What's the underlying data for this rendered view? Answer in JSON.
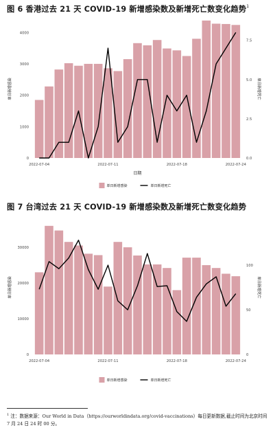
{
  "figures": [
    {
      "title": "图 6 香港过去 21 天 COVID-19 新增感染数及新增死亡数变化趋势",
      "title_sup": "1",
      "chart_data": {
        "type": "bar",
        "x": [
          "2022-07-04",
          "2022-07-05",
          "2022-07-06",
          "2022-07-07",
          "2022-07-08",
          "2022-07-09",
          "2022-07-10",
          "2022-07-11",
          "2022-07-12",
          "2022-07-13",
          "2022-07-14",
          "2022-07-15",
          "2022-07-16",
          "2022-07-17",
          "2022-07-18",
          "2022-07-19",
          "2022-07-20",
          "2022-07-21",
          "2022-07-22",
          "2022-07-23",
          "2022-07-24"
        ],
        "series": [
          {
            "name": "单日新增感染",
            "type": "bar",
            "axis": "left",
            "color": "#d9a1a8",
            "values": [
              1850,
              2280,
              2820,
              3020,
              2940,
              3000,
              3000,
              2860,
              2770,
              3150,
              3660,
              3590,
              3760,
              3490,
              3430,
              3250,
              3800,
              4380,
              4280,
              4270,
              4240
            ]
          },
          {
            "name": "单日新增死亡",
            "type": "line",
            "axis": "right",
            "color": "#000000",
            "values": [
              0,
              0,
              1,
              1,
              3,
              0,
              2,
              7,
              1,
              2,
              5,
              5,
              1,
              4,
              3,
              4,
              1,
              3,
              6,
              7,
              8
            ]
          }
        ],
        "xticks": [
          "2022-07-04",
          "2022-07-11",
          "2022-07-18",
          "2022-07-24"
        ],
        "xlabel": "日期",
        "ylabel": "单日新增感染",
        "y2label": "单日新增死亡",
        "ylim": [
          0,
          4400
        ],
        "yticks": [
          0,
          1000,
          2000,
          3000,
          4000
        ],
        "ytick_labels": [
          "0",
          "1000",
          "2000",
          "3000",
          "4000"
        ],
        "y2lim": [
          0,
          8.8
        ],
        "y2ticks": [
          0,
          2.5,
          5,
          7.5
        ],
        "y2tick_labels": [
          "0.0",
          "2.5",
          "5.0",
          "7.5"
        ],
        "legend": [
          "单日新增感染",
          "单日新增死亡"
        ],
        "legend_position": "bottom",
        "grid": false
      }
    },
    {
      "title": "图 7 台湾过去 21 天 COVID-19 新增感染数及新增死亡数变化趋势",
      "title_sup": "",
      "chart_data": {
        "type": "bar",
        "x": [
          "2022-07-04",
          "2022-07-05",
          "2022-07-06",
          "2022-07-07",
          "2022-07-08",
          "2022-07-09",
          "2022-07-10",
          "2022-07-11",
          "2022-07-12",
          "2022-07-13",
          "2022-07-14",
          "2022-07-15",
          "2022-07-16",
          "2022-07-17",
          "2022-07-18",
          "2022-07-19",
          "2022-07-20",
          "2022-07-21",
          "2022-07-22",
          "2022-07-23",
          "2022-07-24"
        ],
        "series": [
          {
            "name": "单日新增感染",
            "type": "bar",
            "axis": "left",
            "color": "#d9a1a8",
            "values": [
              23000,
              36000,
              34700,
              31500,
              30500,
              28200,
              27800,
              19000,
              31500,
              30000,
              27700,
              25200,
              25200,
              24200,
              18000,
              27100,
              27100,
              25000,
              24200,
              22600,
              21900
            ]
          },
          {
            "name": "单日新增死亡",
            "type": "line",
            "axis": "right",
            "color": "#000000",
            "values": [
              73,
              104,
              96,
              108,
              128,
              95,
              73,
              100,
              60,
              50,
              77,
              113,
              76,
              77,
              48,
              37,
              64,
              79,
              87,
              54,
              68
            ]
          }
        ],
        "xticks": [
          "2022-07-04",
          "2022-07-11",
          "2022-07-18",
          "2022-07-24"
        ],
        "xlabel": "",
        "ylabel": "单日新增感染",
        "y2label": "单日新增死亡",
        "ylim": [
          0,
          37500
        ],
        "yticks": [
          0,
          10000,
          20000,
          30000
        ],
        "ytick_labels": [
          "0",
          "10000",
          "20000",
          "30000"
        ],
        "y2lim": [
          0,
          150
        ],
        "y2ticks": [
          0,
          50,
          100
        ],
        "y2tick_labels": [
          "0",
          "50",
          "100"
        ],
        "legend": [
          "单日新增感染",
          "单日新增死亡"
        ],
        "legend_position": "bottom",
        "grid": false
      }
    }
  ],
  "footnote": {
    "mark": "1",
    "text": "注：数据来源：Our World in Data（https://ourworldindata.org/covid-vaccinations）每日更新数据,截止时间为北京时间 7 月 24 日 24 时 00 分。"
  }
}
